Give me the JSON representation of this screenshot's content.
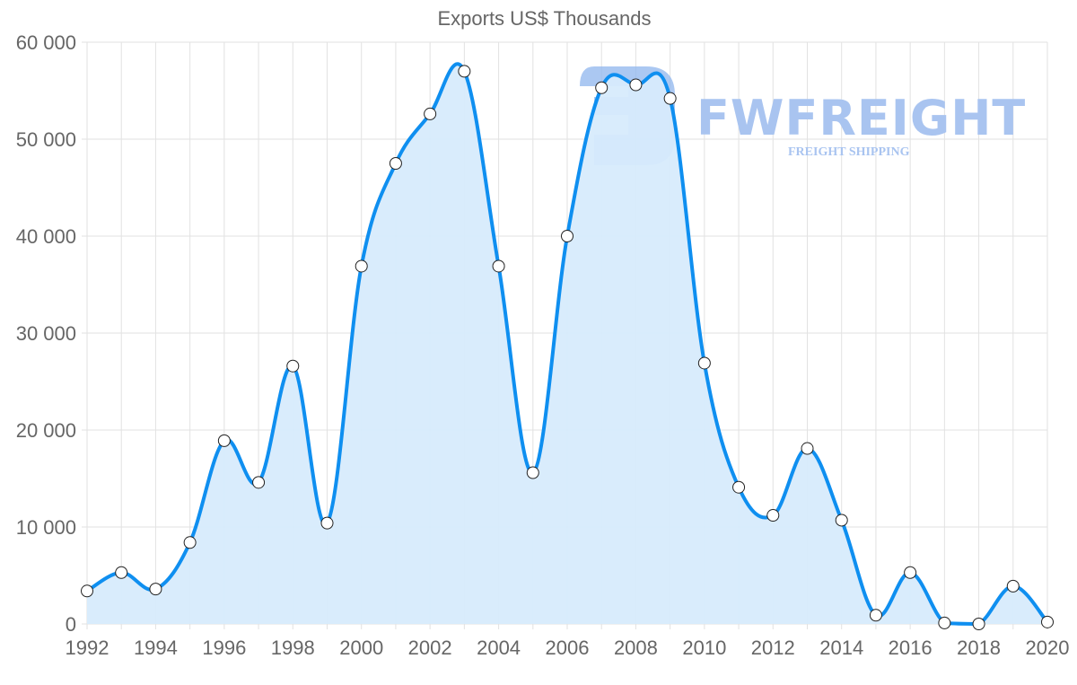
{
  "chart": {
    "title": "Exports US$ Thousands",
    "watermark": {
      "brand": "FWFREIGHT",
      "tagline": "FREIGHT SHIPPING"
    }
  },
  "colors": {
    "line": "#0f8ff0",
    "fill": "#d7ebfc",
    "grid": "#e2e2e2",
    "text": "#666666",
    "point_fill": "#ffffff",
    "point_stroke": "#222222",
    "watermark": "#a9c4f0"
  },
  "chart_data": {
    "type": "area",
    "title": "Exports US$ Thousands",
    "xlabel": "",
    "ylabel": "",
    "ylim": [
      0,
      60000
    ],
    "xlim": [
      1992,
      2020
    ],
    "grid": true,
    "legend": "none",
    "y_ticks": [
      "0",
      "10 000",
      "20 000",
      "30 000",
      "40 000",
      "50 000",
      "60 000"
    ],
    "x_ticks": [
      "1992",
      "1994",
      "1996",
      "1998",
      "2000",
      "2002",
      "2004",
      "2006",
      "2008",
      "2010",
      "2012",
      "2014",
      "2016",
      "2018",
      "2020"
    ],
    "x": [
      1992,
      1993,
      1994,
      1995,
      1996,
      1997,
      1998,
      1999,
      2000,
      2001,
      2002,
      2003,
      2004,
      2005,
      2006,
      2007,
      2008,
      2009,
      2010,
      2011,
      2012,
      2013,
      2014,
      2015,
      2016,
      2017,
      2018,
      2019,
      2020
    ],
    "series": [
      {
        "name": "Exports US$ Thousands",
        "values": [
          3400,
          5300,
          3600,
          8400,
          18900,
          14600,
          26600,
          10400,
          36900,
          47500,
          52600,
          57000,
          36900,
          15600,
          40000,
          55300,
          55600,
          54200,
          26900,
          14100,
          11200,
          18100,
          10700,
          900,
          5300,
          100,
          0,
          3900,
          200
        ]
      }
    ]
  }
}
